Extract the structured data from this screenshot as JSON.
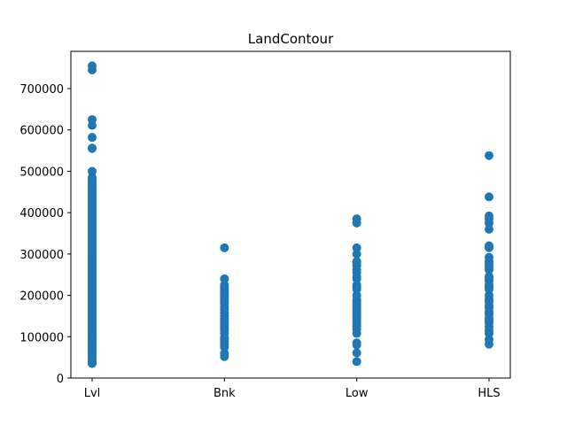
{
  "chart_data": {
    "type": "scatter",
    "title": "LandContour",
    "xlabel": "",
    "ylabel": "",
    "categories": [
      "Lvl",
      "Bnk",
      "Low",
      "HLS"
    ],
    "ylim": [
      0,
      790000
    ],
    "yticks": [
      0,
      100000,
      200000,
      300000,
      400000,
      500000,
      600000,
      700000
    ],
    "ytick_labels": [
      "0",
      "100000",
      "200000",
      "300000",
      "400000",
      "500000",
      "600000",
      "700000"
    ],
    "marker_color": "#1f77b4",
    "grid": false,
    "series": [
      {
        "category": "Lvl",
        "values": [
          35000,
          37000,
          40000,
          45000,
          50000,
          55000,
          60000,
          64000,
          68000,
          72000,
          76000,
          80000,
          84000,
          88000,
          92000,
          96000,
          100000,
          104000,
          108000,
          112000,
          116000,
          120000,
          124000,
          128000,
          132000,
          136000,
          140000,
          144000,
          148000,
          152000,
          156000,
          160000,
          164000,
          168000,
          172000,
          176000,
          180000,
          184000,
          188000,
          192000,
          196000,
          200000,
          204000,
          208000,
          212000,
          216000,
          220000,
          224000,
          228000,
          232000,
          236000,
          240000,
          244000,
          248000,
          252000,
          256000,
          260000,
          264000,
          268000,
          272000,
          276000,
          280000,
          284000,
          288000,
          292000,
          296000,
          300000,
          305000,
          310000,
          315000,
          320000,
          325000,
          330000,
          335000,
          340000,
          345000,
          350000,
          355000,
          360000,
          365000,
          370000,
          375000,
          380000,
          385000,
          390000,
          395000,
          400000,
          405000,
          410000,
          415000,
          420000,
          425000,
          430000,
          435000,
          440000,
          445000,
          450000,
          455000,
          460000,
          465000,
          470000,
          475000,
          480000,
          485000,
          500000,
          555000,
          556000,
          582000,
          611000,
          625000,
          745000,
          755000
        ]
      },
      {
        "category": "Bnk",
        "values": [
          52000,
          60000,
          75000,
          82000,
          88000,
          93000,
          98000,
          108000,
          115000,
          120000,
          125000,
          130000,
          135000,
          140000,
          144000,
          150000,
          158000,
          165000,
          172000,
          180000,
          185000,
          190000,
          195000,
          200000,
          205000,
          210000,
          215000,
          220000,
          225000,
          240000,
          315000
        ]
      },
      {
        "category": "Low",
        "values": [
          40000,
          61000,
          80000,
          85000,
          108000,
          118000,
          125000,
          130000,
          135000,
          140000,
          145000,
          150000,
          155000,
          160000,
          165000,
          170000,
          175000,
          180000,
          185000,
          190000,
          200000,
          215000,
          220000,
          225000,
          240000,
          245000,
          255000,
          262000,
          272000,
          278000,
          282000,
          300000,
          315000,
          375000,
          385000
        ]
      },
      {
        "category": "HLS",
        "values": [
          82000,
          93000,
          108000,
          115000,
          125000,
          135000,
          140000,
          145000,
          155000,
          160000,
          170000,
          175000,
          185000,
          190000,
          200000,
          215000,
          220000,
          225000,
          235000,
          240000,
          245000,
          262000,
          268000,
          275000,
          282000,
          292000,
          315000,
          320000,
          360000,
          375000,
          385000,
          392000,
          438000,
          538000
        ]
      }
    ]
  }
}
